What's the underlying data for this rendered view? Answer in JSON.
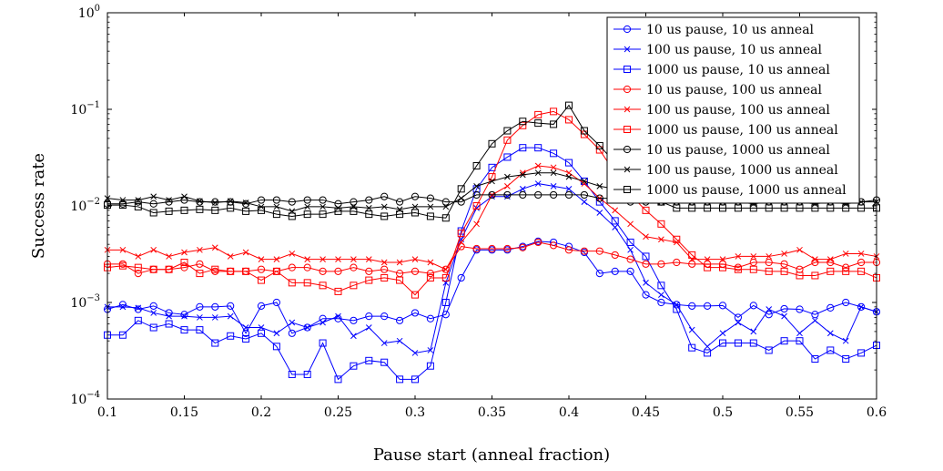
{
  "chart_data": {
    "type": "line",
    "xlabel": "Pause start (anneal fraction)",
    "ylabel": "Success rate",
    "y_scale": "log",
    "xlim": [
      0.1,
      0.6
    ],
    "ylim": [
      0.0001,
      1
    ],
    "grid": false,
    "legend_position": "top-right",
    "x_ticks": [
      {
        "value": 0.1,
        "label": "0.1"
      },
      {
        "value": 0.15,
        "label": "0.15"
      },
      {
        "value": 0.2,
        "label": "0.2"
      },
      {
        "value": 0.25,
        "label": "0.25"
      },
      {
        "value": 0.3,
        "label": "0.3"
      },
      {
        "value": 0.35,
        "label": "0.35"
      },
      {
        "value": 0.4,
        "label": "0.4"
      },
      {
        "value": 0.45,
        "label": "0.45"
      },
      {
        "value": 0.5,
        "label": "0.5"
      },
      {
        "value": 0.55,
        "label": "0.55"
      },
      {
        "value": 0.6,
        "label": "0.6"
      }
    ],
    "y_ticks": [
      {
        "value": 1,
        "base": "10",
        "exp": "0"
      },
      {
        "value": 0.1,
        "base": "10",
        "exp": "−1"
      },
      {
        "value": 0.01,
        "base": "10",
        "exp": "−2"
      },
      {
        "value": 0.001,
        "base": "10",
        "exp": "−3"
      },
      {
        "value": 0.0001,
        "base": "10",
        "exp": "−4"
      }
    ],
    "x": [
      0.1,
      0.11,
      0.12,
      0.13,
      0.14,
      0.15,
      0.16,
      0.17,
      0.18,
      0.19,
      0.2,
      0.21,
      0.22,
      0.23,
      0.24,
      0.25,
      0.26,
      0.27,
      0.28,
      0.29,
      0.3,
      0.31,
      0.32,
      0.33,
      0.34,
      0.35,
      0.36,
      0.37,
      0.38,
      0.39,
      0.4,
      0.41,
      0.42,
      0.43,
      0.44,
      0.45,
      0.46,
      0.47,
      0.48,
      0.49,
      0.5,
      0.51,
      0.52,
      0.53,
      0.54,
      0.55,
      0.56,
      0.57,
      0.58,
      0.59,
      0.6
    ],
    "series": [
      {
        "name": "10 us pause, 10 us anneal",
        "color": "#0000ff",
        "marker": "circle",
        "values": [
          0.00085,
          0.00095,
          0.00085,
          0.00092,
          0.00078,
          0.00075,
          0.0009,
          0.0009,
          0.00092,
          0.00048,
          0.00092,
          0.001,
          0.00048,
          0.00055,
          0.00068,
          0.00068,
          0.00065,
          0.00072,
          0.00072,
          0.00065,
          0.00078,
          0.00068,
          0.00075,
          0.0018,
          0.0035,
          0.0035,
          0.0035,
          0.0038,
          0.0043,
          0.0042,
          0.0038,
          0.0033,
          0.002,
          0.0021,
          0.0021,
          0.0012,
          0.001,
          0.00095,
          0.00092,
          0.00092,
          0.00093,
          0.0007,
          0.00093,
          0.00075,
          0.00086,
          0.00085,
          0.00075,
          0.00088,
          0.001,
          0.0009,
          0.0008
        ]
      },
      {
        "name": "100 us pause, 10 us anneal",
        "color": "#0000ff",
        "marker": "x",
        "values": [
          0.0009,
          0.0009,
          0.00088,
          0.00078,
          0.00072,
          0.00072,
          0.0007,
          0.0007,
          0.00072,
          0.00055,
          0.00055,
          0.00048,
          0.00062,
          0.00055,
          0.00062,
          0.00072,
          0.00045,
          0.00055,
          0.00038,
          0.0004,
          0.0003,
          0.00032,
          0.0016,
          0.0045,
          0.0095,
          0.0125,
          0.0125,
          0.015,
          0.017,
          0.016,
          0.015,
          0.011,
          0.0085,
          0.006,
          0.0035,
          0.0016,
          0.0012,
          0.00095,
          0.00052,
          0.00035,
          0.00048,
          0.00062,
          0.0005,
          0.00085,
          0.00072,
          0.00048,
          0.00065,
          0.00048,
          0.0004,
          0.0009,
          0.0008
        ]
      },
      {
        "name": "1000 us pause, 10 us anneal",
        "color": "#0000ff",
        "marker": "square",
        "values": [
          0.00046,
          0.00046,
          0.00065,
          0.00055,
          0.0006,
          0.00052,
          0.00052,
          0.00038,
          0.00045,
          0.00042,
          0.00048,
          0.00035,
          0.00018,
          0.00018,
          0.00038,
          0.00016,
          0.00022,
          0.00025,
          0.00024,
          0.00016,
          0.00016,
          0.00022,
          0.001,
          0.0055,
          0.015,
          0.025,
          0.032,
          0.04,
          0.04,
          0.035,
          0.028,
          0.018,
          0.011,
          0.007,
          0.0042,
          0.003,
          0.0015,
          0.00085,
          0.00034,
          0.0003,
          0.00038,
          0.00038,
          0.00038,
          0.00032,
          0.0004,
          0.0004,
          0.00026,
          0.00032,
          0.00026,
          0.0003,
          0.00036
        ]
      },
      {
        "name": "10 us pause, 100 us anneal",
        "color": "#ff0000",
        "marker": "circle",
        "values": [
          0.0025,
          0.0025,
          0.002,
          0.0022,
          0.0022,
          0.0023,
          0.0025,
          0.0021,
          0.0021,
          0.0021,
          0.0022,
          0.0021,
          0.0023,
          0.0023,
          0.0021,
          0.0021,
          0.0023,
          0.0021,
          0.0022,
          0.002,
          0.0021,
          0.002,
          0.0022,
          0.0038,
          0.0036,
          0.0036,
          0.0036,
          0.0037,
          0.0042,
          0.0039,
          0.0035,
          0.0034,
          0.0034,
          0.0031,
          0.0028,
          0.0025,
          0.0025,
          0.0026,
          0.0025,
          0.0025,
          0.0025,
          0.0023,
          0.0026,
          0.0026,
          0.0025,
          0.0022,
          0.0026,
          0.0026,
          0.0023,
          0.0026,
          0.0026
        ]
      },
      {
        "name": "100 us pause, 100 us anneal",
        "color": "#ff0000",
        "marker": "x",
        "values": [
          0.0035,
          0.0035,
          0.003,
          0.0035,
          0.003,
          0.0033,
          0.0035,
          0.0037,
          0.003,
          0.0033,
          0.0028,
          0.0028,
          0.0032,
          0.0028,
          0.0028,
          0.0028,
          0.0028,
          0.0028,
          0.0026,
          0.0026,
          0.0028,
          0.0026,
          0.0022,
          0.0042,
          0.0065,
          0.013,
          0.016,
          0.022,
          0.026,
          0.025,
          0.022,
          0.017,
          0.012,
          0.009,
          0.0065,
          0.0048,
          0.0045,
          0.0042,
          0.0028,
          0.0028,
          0.0028,
          0.003,
          0.003,
          0.003,
          0.0032,
          0.0035,
          0.0028,
          0.0028,
          0.0032,
          0.0032,
          0.003
        ]
      },
      {
        "name": "1000 us pause, 100 us anneal",
        "color": "#ff0000",
        "marker": "square",
        "values": [
          0.0023,
          0.0024,
          0.0023,
          0.0022,
          0.0022,
          0.0026,
          0.002,
          0.0022,
          0.0021,
          0.0021,
          0.0017,
          0.0021,
          0.0016,
          0.0016,
          0.0015,
          0.0013,
          0.0015,
          0.0017,
          0.0018,
          0.0017,
          0.0012,
          0.0018,
          0.0018,
          0.0052,
          0.01,
          0.02,
          0.048,
          0.068,
          0.088,
          0.095,
          0.078,
          0.055,
          0.038,
          0.022,
          0.013,
          0.009,
          0.0065,
          0.0045,
          0.0031,
          0.0023,
          0.0023,
          0.0022,
          0.0022,
          0.0021,
          0.0021,
          0.0019,
          0.0019,
          0.0021,
          0.0021,
          0.0021,
          0.0018
        ]
      },
      {
        "name": "10 us pause, 1000 us anneal",
        "color": "#000000",
        "marker": "circle",
        "values": [
          0.0105,
          0.0105,
          0.011,
          0.0105,
          0.011,
          0.0115,
          0.011,
          0.011,
          0.011,
          0.0105,
          0.0115,
          0.0115,
          0.011,
          0.0115,
          0.0115,
          0.0105,
          0.011,
          0.0115,
          0.0125,
          0.011,
          0.0125,
          0.012,
          0.011,
          0.011,
          0.013,
          0.013,
          0.013,
          0.013,
          0.013,
          0.013,
          0.013,
          0.013,
          0.012,
          0.012,
          0.011,
          0.011,
          0.011,
          0.011,
          0.011,
          0.011,
          0.011,
          0.011,
          0.011,
          0.011,
          0.011,
          0.011,
          0.011,
          0.011,
          0.011,
          0.011,
          0.0115
        ]
      },
      {
        "name": "100 us pause, 1000 us anneal",
        "color": "#000000",
        "marker": "x",
        "values": [
          0.012,
          0.0115,
          0.0115,
          0.0125,
          0.0115,
          0.0125,
          0.0112,
          0.0108,
          0.0112,
          0.0108,
          0.0098,
          0.0098,
          0.0088,
          0.0098,
          0.0098,
          0.0095,
          0.0098,
          0.0095,
          0.0098,
          0.0092,
          0.0098,
          0.0098,
          0.0098,
          0.012,
          0.016,
          0.018,
          0.02,
          0.021,
          0.022,
          0.022,
          0.02,
          0.018,
          0.016,
          0.015,
          0.013,
          0.012,
          0.011,
          0.011,
          0.011,
          0.011,
          0.011,
          0.011,
          0.0105,
          0.011,
          0.011,
          0.011,
          0.0105,
          0.011,
          0.0105,
          0.011,
          0.011
        ]
      },
      {
        "name": "1000 us pause, 1000 us anneal",
        "color": "#000000",
        "marker": "square",
        "values": [
          0.0102,
          0.0102,
          0.0098,
          0.0085,
          0.0088,
          0.009,
          0.0092,
          0.009,
          0.0095,
          0.0088,
          0.009,
          0.0082,
          0.0078,
          0.0082,
          0.0082,
          0.0088,
          0.0088,
          0.0082,
          0.0078,
          0.0082,
          0.0085,
          0.0078,
          0.0075,
          0.015,
          0.026,
          0.044,
          0.06,
          0.075,
          0.072,
          0.07,
          0.11,
          0.06,
          0.042,
          0.028,
          0.02,
          0.014,
          0.011,
          0.0095,
          0.0095,
          0.0095,
          0.0095,
          0.0095,
          0.0095,
          0.0095,
          0.0095,
          0.0095,
          0.0095,
          0.0095,
          0.0095,
          0.0095,
          0.0095
        ]
      }
    ]
  }
}
